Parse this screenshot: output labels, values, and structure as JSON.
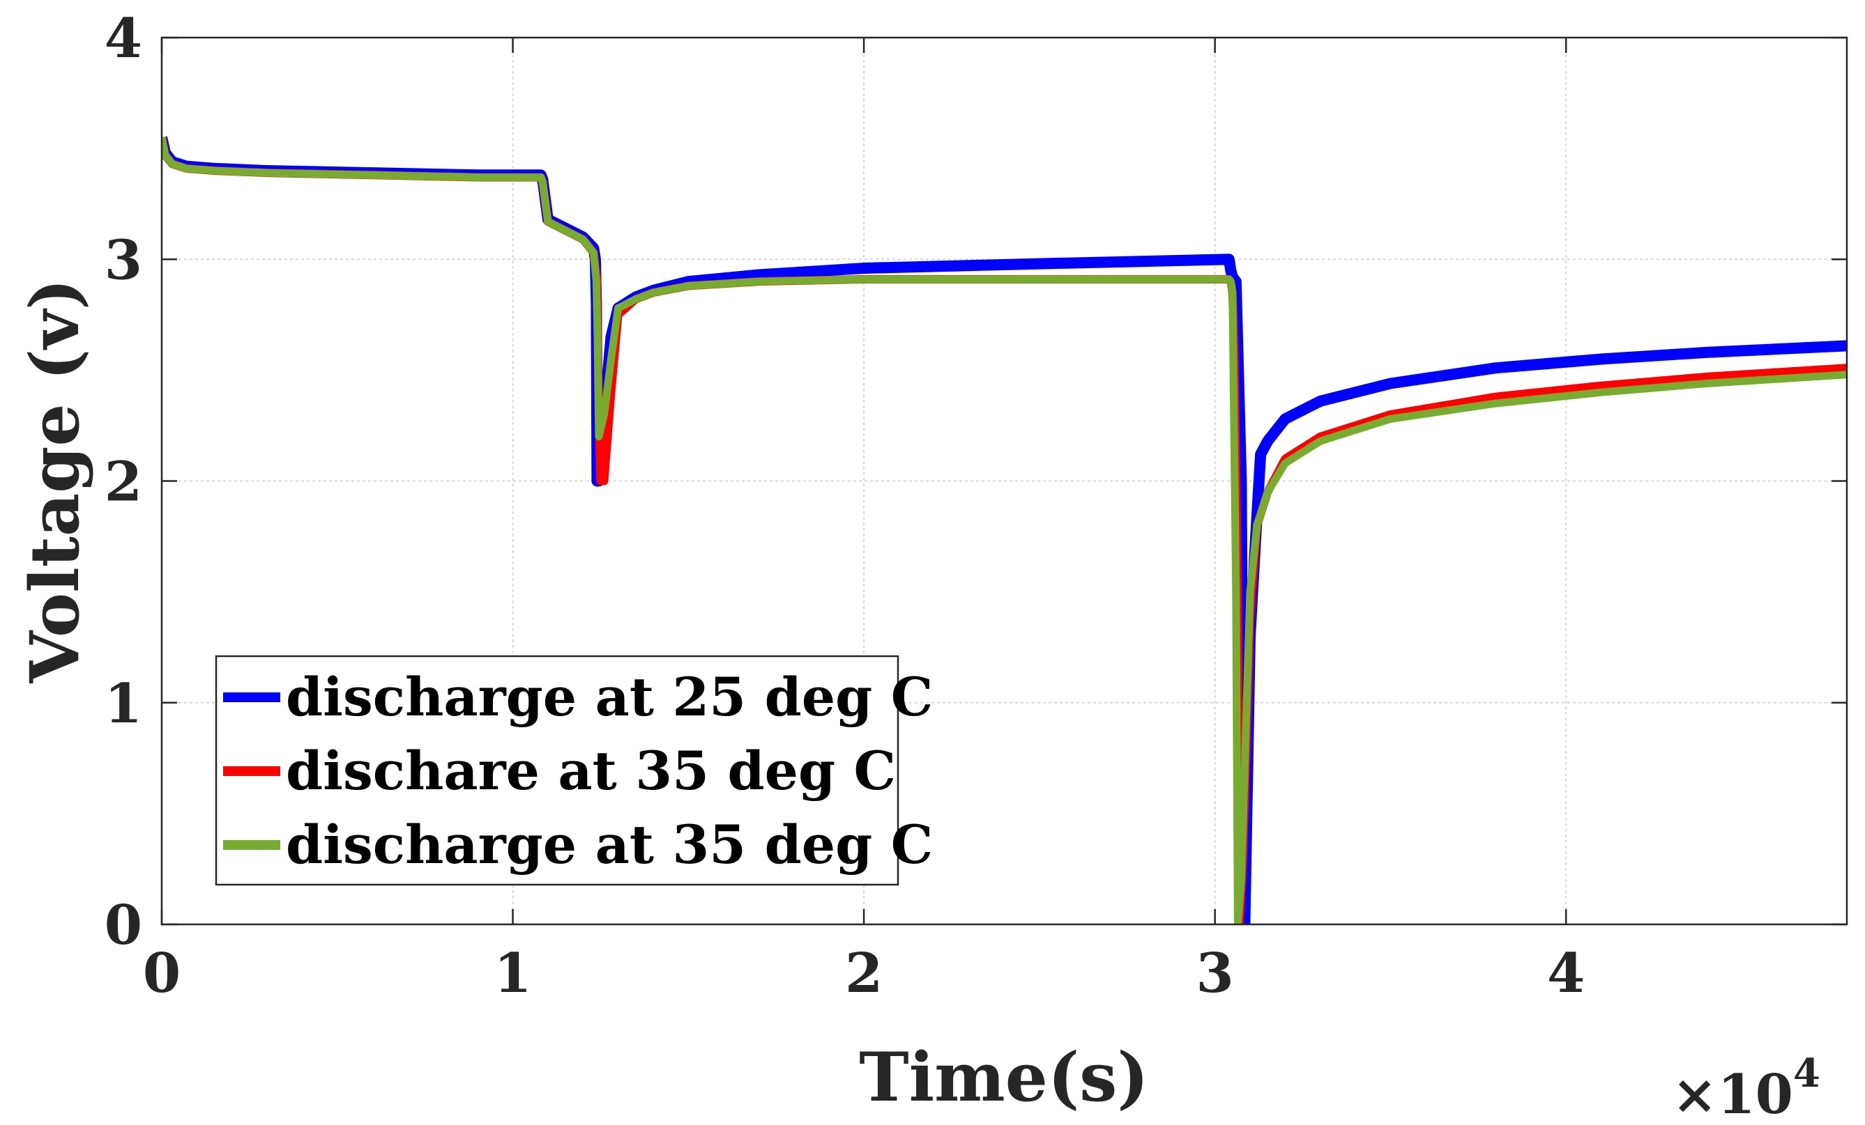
{
  "chart_data": {
    "type": "line",
    "title": "",
    "xlabel": "Time(s)",
    "ylabel": "Voltage (v)",
    "xlim": [
      0,
      48000
    ],
    "ylim": [
      0,
      4
    ],
    "x_ticks": [
      0,
      10000,
      20000,
      30000,
      40000
    ],
    "x_tick_labels": [
      "0",
      "1",
      "2",
      "3",
      "4"
    ],
    "y_ticks": [
      0,
      1,
      2,
      3,
      4
    ],
    "y_tick_labels": [
      "0",
      "1",
      "2",
      "3",
      "4"
    ],
    "x_exponent_label": {
      "base": "×10",
      "exponent": "4"
    },
    "grid": true,
    "legend_position": "bottom-left",
    "series": [
      {
        "name": "discharge at 25 deg C",
        "color": "#0000ff",
        "x": [
          0,
          100,
          300,
          700,
          1500,
          3000,
          6000,
          9000,
          10800,
          10850,
          11000,
          11500,
          12000,
          12300,
          12350,
          12380,
          12400,
          12450,
          12600,
          12800,
          13000,
          13500,
          14000,
          15000,
          17000,
          20000,
          25000,
          30400,
          30450,
          30500,
          30600,
          30750,
          30800,
          30850,
          31000,
          31200,
          31300,
          31500,
          32000,
          33000,
          35000,
          38000,
          41000,
          44000,
          48000
        ],
        "values": [
          3.55,
          3.48,
          3.44,
          3.42,
          3.41,
          3.4,
          3.39,
          3.38,
          3.38,
          3.36,
          3.18,
          3.14,
          3.1,
          3.05,
          3.0,
          2.8,
          2.0,
          2.0,
          2.3,
          2.65,
          2.78,
          2.83,
          2.86,
          2.9,
          2.93,
          2.96,
          2.98,
          3.0,
          2.95,
          2.92,
          2.9,
          2.0,
          0.5,
          0.0,
          1.3,
          1.85,
          2.12,
          2.18,
          2.28,
          2.36,
          2.44,
          2.51,
          2.55,
          2.58,
          2.61
        ]
      },
      {
        "name": "dischare at 35 deg C",
        "color": "#ff0000",
        "x": [
          0,
          100,
          300,
          700,
          1500,
          3000,
          6000,
          9000,
          10800,
          10850,
          11000,
          11500,
          12000,
          12300,
          12400,
          12450,
          12500,
          12600,
          12800,
          13000,
          13500,
          14000,
          15000,
          17000,
          20000,
          25000,
          30400,
          30450,
          30500,
          30550,
          30650,
          30700,
          30800,
          31000,
          31200,
          31500,
          32000,
          33000,
          35000,
          38000,
          41000,
          44000,
          48000
        ],
        "values": [
          3.55,
          3.47,
          3.43,
          3.41,
          3.4,
          3.39,
          3.38,
          3.37,
          3.37,
          3.35,
          3.17,
          3.13,
          3.09,
          3.03,
          2.9,
          2.3,
          2.0,
          2.0,
          2.4,
          2.75,
          2.82,
          2.85,
          2.88,
          2.9,
          2.91,
          2.91,
          2.91,
          2.9,
          2.85,
          2.6,
          1.5,
          0.0,
          0.3,
          1.4,
          1.8,
          1.95,
          2.1,
          2.2,
          2.3,
          2.38,
          2.43,
          2.47,
          2.51
        ]
      },
      {
        "name": "discharge at 35 deg C",
        "color": "#77ac30",
        "x": [
          0,
          100,
          300,
          700,
          1500,
          3000,
          6000,
          9000,
          10800,
          10850,
          11000,
          11500,
          12000,
          12300,
          12380,
          12420,
          12450,
          12600,
          12800,
          13000,
          13500,
          14000,
          15000,
          17000,
          20000,
          25000,
          30400,
          30450,
          30500,
          30600,
          30650,
          30750,
          31000,
          31200,
          31500,
          32000,
          33000,
          35000,
          38000,
          41000,
          44000,
          48000
        ],
        "values": [
          3.55,
          3.47,
          3.43,
          3.41,
          3.4,
          3.39,
          3.38,
          3.37,
          3.37,
          3.35,
          3.17,
          3.13,
          3.09,
          3.03,
          2.9,
          2.6,
          2.2,
          2.3,
          2.55,
          2.78,
          2.82,
          2.85,
          2.88,
          2.9,
          2.91,
          2.91,
          2.91,
          2.9,
          2.85,
          1.5,
          0.0,
          0.2,
          1.5,
          1.8,
          1.95,
          2.08,
          2.18,
          2.28,
          2.35,
          2.4,
          2.44,
          2.48
        ]
      }
    ]
  }
}
